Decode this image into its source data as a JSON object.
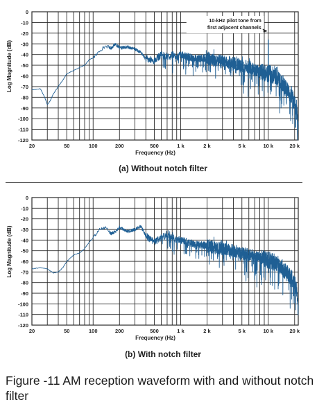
{
  "figure_caption": "Figure -11 AM reception waveform with and without notch filter",
  "colors": {
    "trace": "#1f5f94",
    "grid": "#2a2a2a",
    "axis_text": "#222222"
  },
  "chart_data": [
    {
      "type": "line",
      "subcaption": "(a) Without notch filter",
      "xlabel": "Frequency (Hz)",
      "ylabel": "Log Magnitude (dB)",
      "x_scale": "log",
      "xlim": [
        20,
        22000
      ],
      "ylim": [
        -120,
        0
      ],
      "x_ticks": [
        20,
        50,
        100,
        200,
        500,
        1000,
        2000,
        5000,
        10000,
        20000
      ],
      "x_tick_labels": [
        "20",
        "50",
        "100",
        "200",
        "500",
        "1 k",
        "2 k",
        "5 k",
        "10 k",
        "20 k"
      ],
      "y_ticks": [
        0,
        -10,
        -20,
        -30,
        -40,
        -50,
        -60,
        -70,
        -80,
        -90,
        -100,
        -110,
        -120
      ],
      "y_tick_labels": [
        "0",
        "-10",
        "-20",
        "-30",
        "-40",
        "-50",
        "-60",
        "-70",
        "-80",
        "-90",
        "-100",
        "-110",
        "-120"
      ],
      "grid": true,
      "annotation": {
        "text": [
          "10-kHz pilot tone from",
          "first adjacent channels"
        ],
        "x": 10000,
        "y": -22
      },
      "series": [
        {
          "x": [
            20,
            25,
            28,
            30,
            32,
            35,
            40,
            45,
            50,
            60,
            70,
            80,
            90,
            100,
            110,
            120,
            140,
            160,
            180,
            200,
            250,
            300,
            350,
            400,
            500,
            600,
            700,
            800,
            900,
            1000,
            1200,
            1500,
            2000,
            2500,
            3000,
            4000,
            5000,
            6000,
            7000,
            8000,
            9000,
            10000,
            11000,
            12000,
            14000,
            16000,
            18000,
            20000,
            21000,
            22000
          ],
          "y": [
            -73,
            -72,
            -80,
            -87,
            -84,
            -77,
            -70,
            -64,
            -58,
            -55,
            -52,
            -50,
            -45,
            -43,
            -40,
            -36,
            -32,
            -34,
            -30,
            -34,
            -33,
            -35,
            -38,
            -44,
            -46,
            -40,
            -42,
            -40,
            -43,
            -40,
            -42,
            -44,
            -43,
            -46,
            -46,
            -48,
            -50,
            -52,
            -54,
            -56,
            -57,
            -57,
            -59,
            -60,
            -66,
            -72,
            -78,
            -84,
            -92,
            -110
          ],
          "spike": {
            "x": 10000,
            "y": -26
          }
        }
      ]
    },
    {
      "type": "line",
      "subcaption": "(b) With notch filter",
      "xlabel": "Frequency (Hz)",
      "ylabel": "Log Magnitude (dB)",
      "x_scale": "log",
      "xlim": [
        20,
        22000
      ],
      "ylim": [
        -120,
        0
      ],
      "x_ticks": [
        20,
        50,
        100,
        200,
        500,
        1000,
        2000,
        5000,
        10000,
        20000
      ],
      "x_tick_labels": [
        "20",
        "50",
        "100",
        "200",
        "500",
        "1 k",
        "2 k",
        "5 k",
        "10 k",
        "20 k"
      ],
      "y_ticks": [
        0,
        -10,
        -20,
        -30,
        -40,
        -50,
        -60,
        -70,
        -80,
        -90,
        -100,
        -110,
        -120
      ],
      "y_tick_labels": [
        "0",
        "-10",
        "-20",
        "-30",
        "-40",
        "-50",
        "-60",
        "-70",
        "-80",
        "-90",
        "-100",
        "-110",
        "-120"
      ],
      "grid": true,
      "series": [
        {
          "x": [
            20,
            25,
            30,
            35,
            40,
            45,
            50,
            60,
            70,
            80,
            90,
            100,
            110,
            120,
            140,
            160,
            180,
            200,
            250,
            300,
            350,
            400,
            500,
            600,
            700,
            800,
            900,
            1000,
            1200,
            1500,
            2000,
            2500,
            3000,
            4000,
            5000,
            6000,
            7000,
            8000,
            9000,
            10000,
            11000,
            12000,
            14000,
            16000,
            18000,
            20000,
            21000,
            22000
          ],
          "y": [
            -67,
            -66,
            -67,
            -71,
            -70,
            -66,
            -60,
            -54,
            -52,
            -48,
            -42,
            -38,
            -33,
            -30,
            -28,
            -34,
            -32,
            -28,
            -32,
            -30,
            -27,
            -36,
            -42,
            -38,
            -34,
            -36,
            -40,
            -40,
            -42,
            -44,
            -45,
            -47,
            -48,
            -50,
            -52,
            -54,
            -55,
            -56,
            -58,
            -59,
            -60,
            -61,
            -65,
            -70,
            -74,
            -80,
            -88,
            -108
          ]
        }
      ]
    }
  ]
}
